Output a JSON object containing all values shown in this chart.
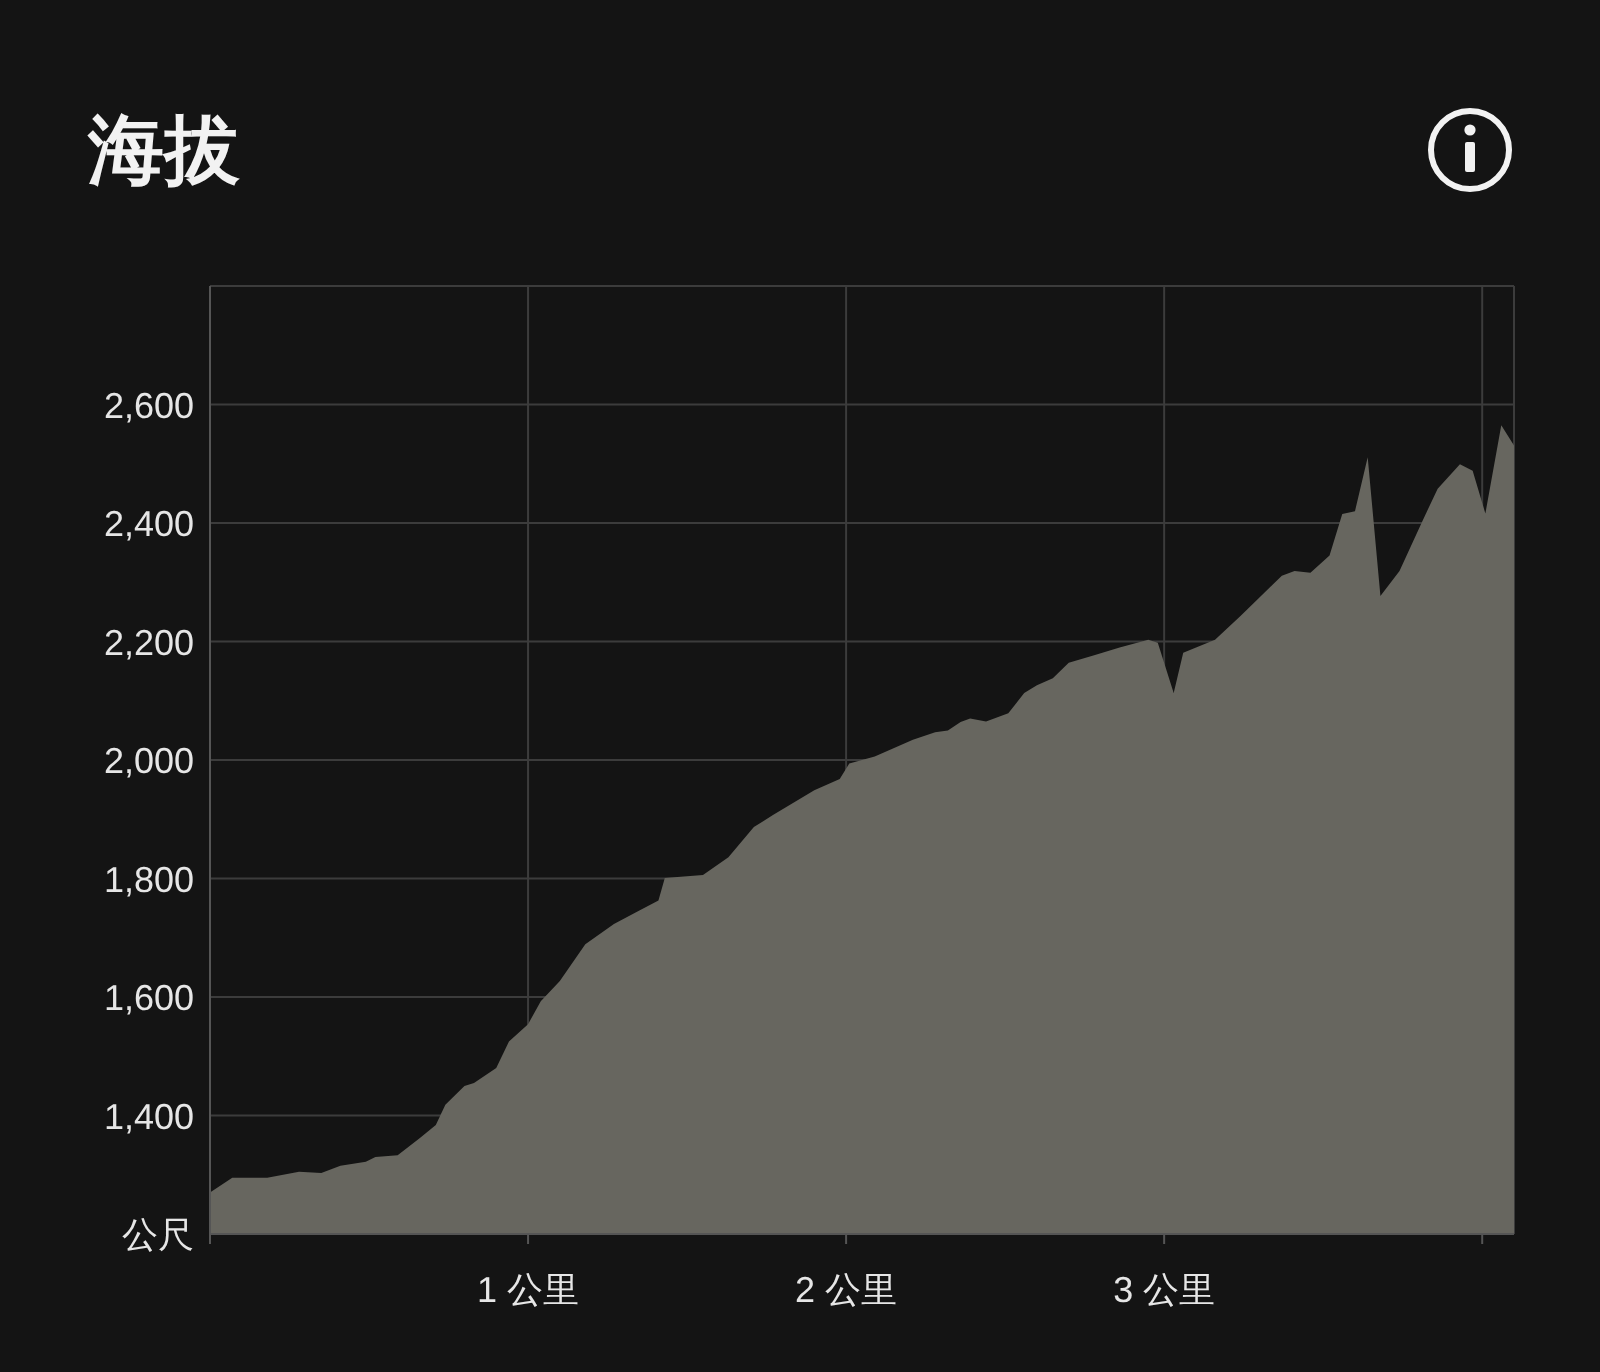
{
  "chart_data": {
    "type": "area",
    "title": "海拔",
    "x": [
      0,
      0.07,
      0.18,
      0.28,
      0.35,
      0.41,
      0.49,
      0.52,
      0.59,
      0.66,
      0.71,
      0.74,
      0.8,
      0.83,
      0.9,
      0.94,
      1.0,
      1.04,
      1.1,
      1.18,
      1.27,
      1.35,
      1.41,
      1.43,
      1.55,
      1.63,
      1.71,
      1.77,
      1.9,
      1.98,
      2.01,
      2.09,
      2.21,
      2.28,
      2.32,
      2.36,
      2.39,
      2.44,
      2.51,
      2.56,
      2.6,
      2.65,
      2.7,
      2.78,
      2.86,
      2.95,
      2.98,
      3.03,
      3.06,
      3.16,
      3.24,
      3.29,
      3.37,
      3.41,
      3.46,
      3.52,
      3.56,
      3.6,
      3.64,
      3.68,
      3.74,
      3.81,
      3.86,
      3.93,
      3.97,
      4.01,
      4.06,
      4.1
    ],
    "series": [
      {
        "color": "#67665f",
        "values": [
          1270,
          1295,
          1295,
          1305,
          1303,
          1315,
          1322,
          1330,
          1333,
          1362,
          1384,
          1418,
          1450,
          1455,
          1480,
          1525,
          1554,
          1593,
          1627,
          1689,
          1723,
          1746,
          1763,
          1801,
          1806,
          1836,
          1887,
          1907,
          1949,
          1968,
          1994,
          2006,
          2034,
          2047,
          2050,
          2064,
          2070,
          2065,
          2079,
          2113,
          2126,
          2138,
          2164,
          2177,
          2190,
          2203,
          2198,
          2113,
          2181,
          2203,
          2243,
          2269,
          2311,
          2319,
          2316,
          2345,
          2415,
          2420,
          2511,
          2277,
          2319,
          2401,
          2458,
          2499,
          2488,
          2416,
          2565,
          2531
        ]
      }
    ],
    "xlim": [
      0,
      4.1
    ],
    "ylim": [
      1200,
      2800
    ],
    "xticks": [
      {
        "value": 0,
        "label": null
      },
      {
        "value": 1,
        "label": "1 公里"
      },
      {
        "value": 2,
        "label": "2 公里"
      },
      {
        "value": 3,
        "label": "3 公里"
      },
      {
        "value": 4,
        "label": null
      }
    ],
    "yticks": [
      {
        "value": 1200,
        "label": "公尺"
      },
      {
        "value": 1400,
        "label": "1,400"
      },
      {
        "value": 1600,
        "label": "1,600"
      },
      {
        "value": 1800,
        "label": "1,800"
      },
      {
        "value": 2000,
        "label": "2,000"
      },
      {
        "value": 2200,
        "label": "2,200"
      },
      {
        "value": 2400,
        "label": "2,400"
      },
      {
        "value": 2600,
        "label": "2,600"
      }
    ],
    "grid": true
  }
}
